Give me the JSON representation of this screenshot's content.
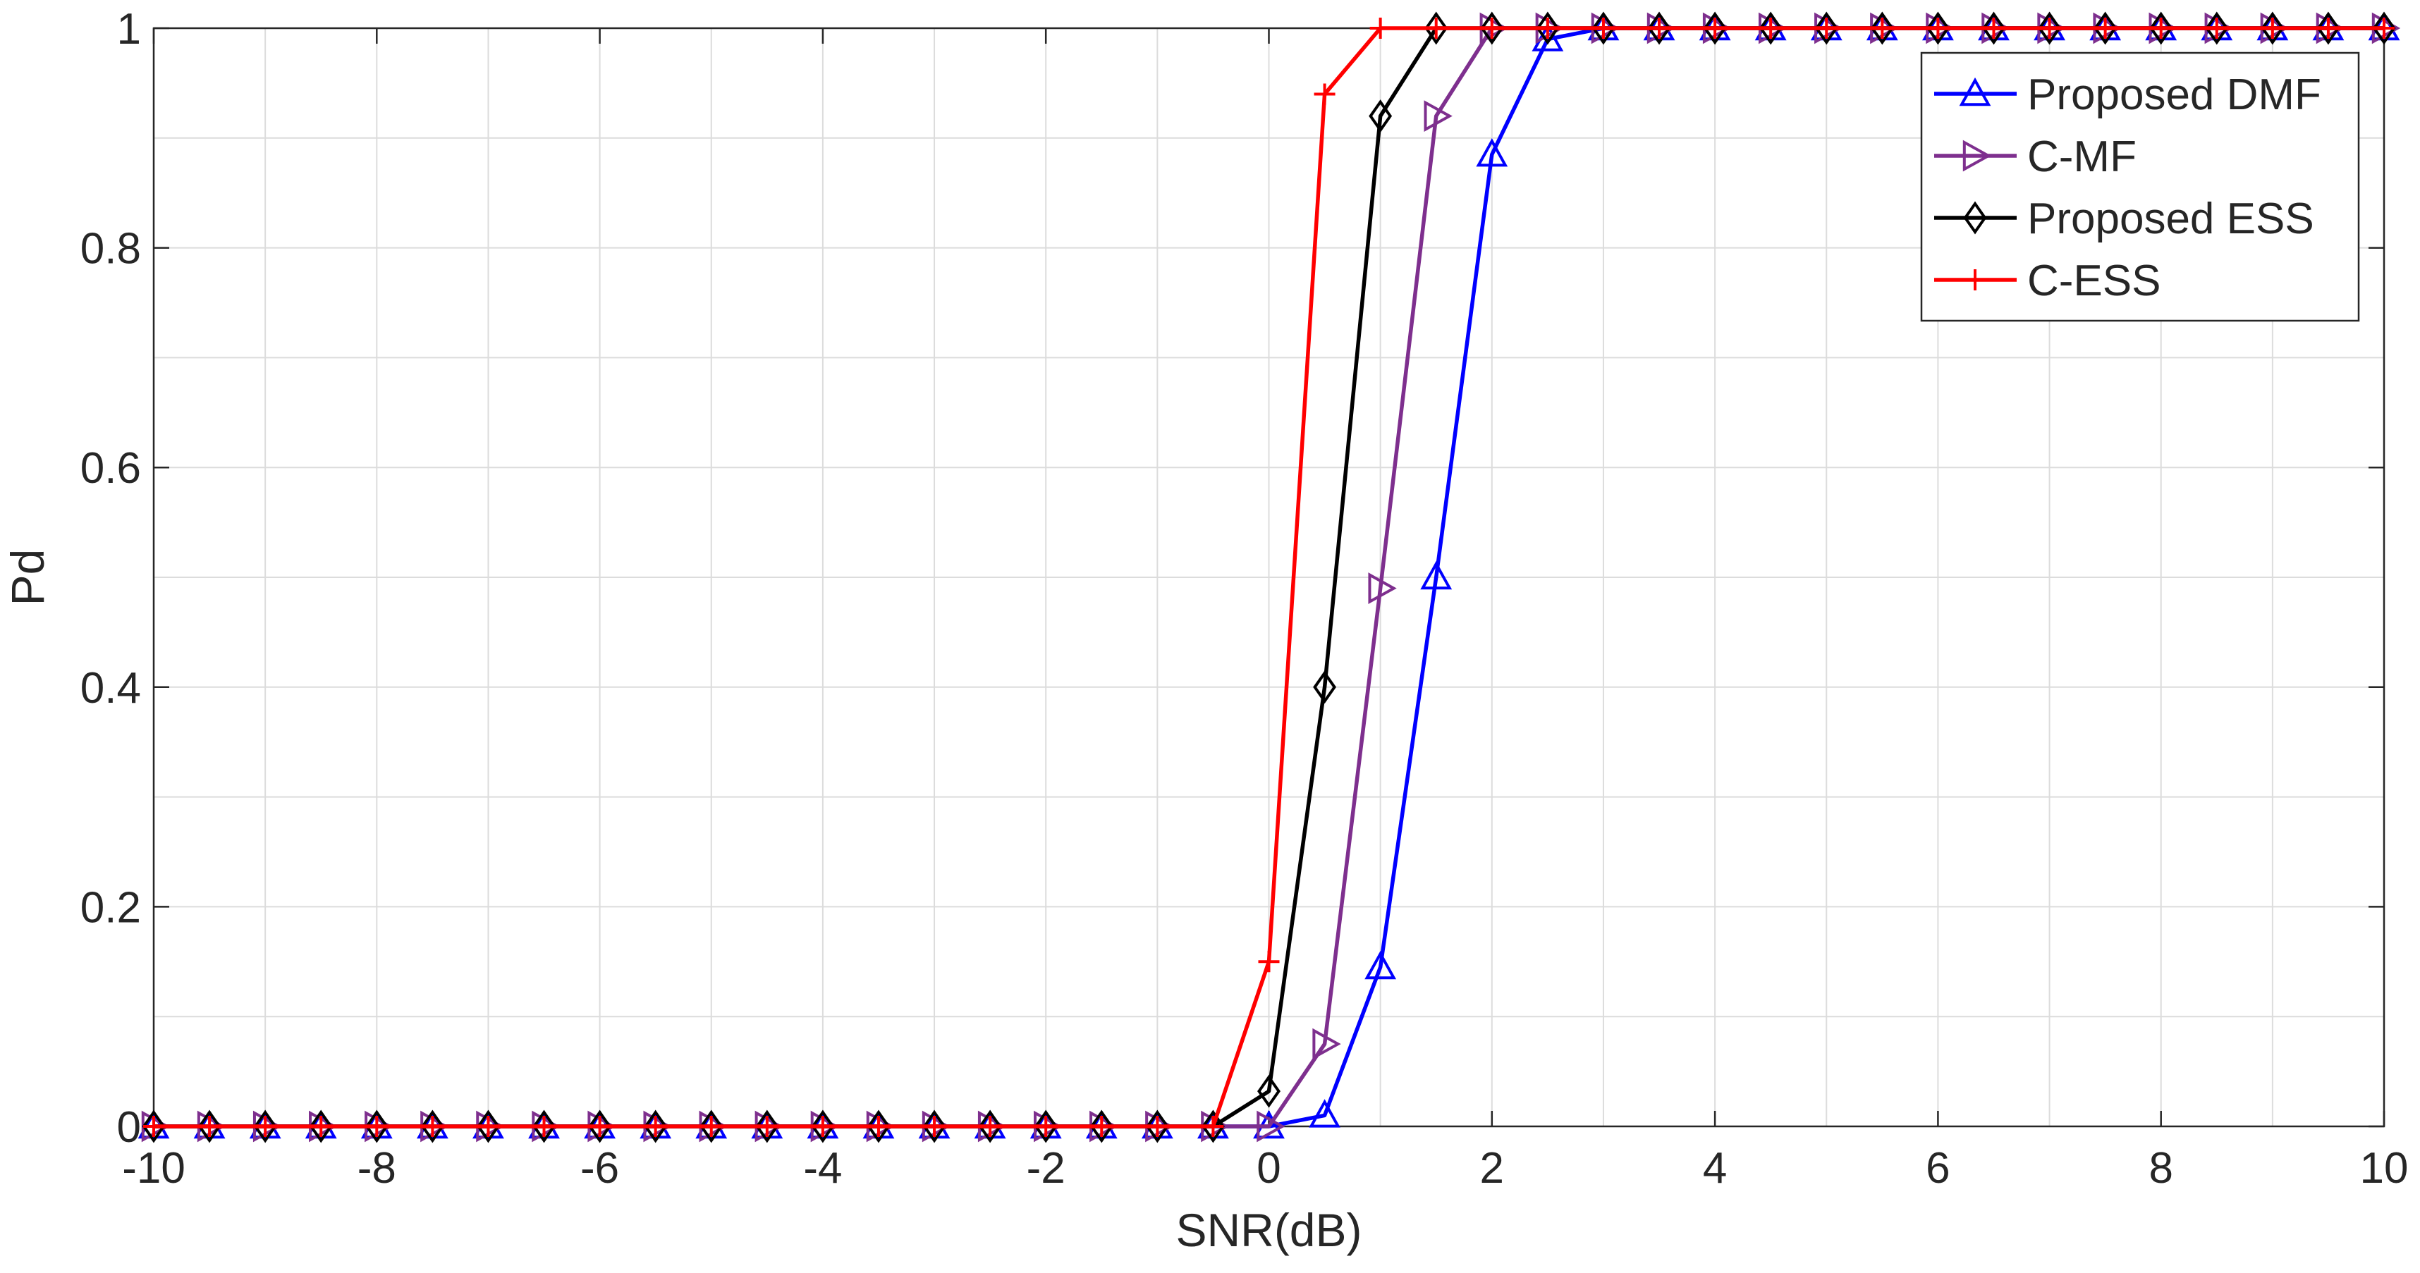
{
  "chart_data": {
    "type": "line",
    "title": "",
    "xlabel": "SNR(dB)",
    "ylabel": "Pd",
    "xlim": [
      -10,
      10
    ],
    "ylim": [
      0,
      1
    ],
    "xticks": [
      -10,
      -8,
      -6,
      -4,
      -2,
      0,
      2,
      4,
      6,
      8,
      10
    ],
    "yticks": [
      0,
      0.2,
      0.4,
      0.6,
      0.8,
      1
    ],
    "xtick_labels": [
      "-10",
      "-8",
      "-6",
      "-4",
      "-2",
      "0",
      "2",
      "4",
      "6",
      "8",
      "10"
    ],
    "ytick_labels": [
      "0",
      "0.2",
      "0.4",
      "0.6",
      "0.8",
      "1"
    ],
    "grid": true,
    "legend_position": "top-right",
    "x": [
      -10,
      -9.5,
      -9,
      -8.5,
      -8,
      -7.5,
      -7,
      -6.5,
      -6,
      -5.5,
      -5,
      -4.5,
      -4,
      -3.5,
      -3,
      -2.5,
      -2,
      -1.5,
      -1,
      -0.5,
      0,
      0.5,
      1,
      1.5,
      2,
      2.5,
      3,
      3.5,
      4,
      4.5,
      5,
      5.5,
      6,
      6.5,
      7,
      7.5,
      8,
      8.5,
      9,
      9.5,
      10
    ],
    "series": [
      {
        "name": "Proposed DMF",
        "color": "#0000ff",
        "marker": "triangle-up",
        "values": [
          0,
          0,
          0,
          0,
          0,
          0,
          0,
          0,
          0,
          0,
          0,
          0,
          0,
          0,
          0,
          0,
          0,
          0,
          0,
          0,
          0,
          0.01,
          0.145,
          0.5,
          0.885,
          0.99,
          1,
          1,
          1,
          1,
          1,
          1,
          1,
          1,
          1,
          1,
          1,
          1,
          1,
          1,
          1
        ]
      },
      {
        "name": "C-MF",
        "color": "#7e2f8e",
        "marker": "triangle-right",
        "values": [
          0,
          0,
          0,
          0,
          0,
          0,
          0,
          0,
          0,
          0,
          0,
          0,
          0,
          0,
          0,
          0,
          0,
          0,
          0,
          0,
          0,
          0.075,
          0.49,
          0.92,
          1,
          1,
          1,
          1,
          1,
          1,
          1,
          1,
          1,
          1,
          1,
          1,
          1,
          1,
          1,
          1,
          1
        ]
      },
      {
        "name": "Proposed ESS",
        "color": "#000000",
        "marker": "diamond",
        "values": [
          0,
          0,
          0,
          0,
          0,
          0,
          0,
          0,
          0,
          0,
          0,
          0,
          0,
          0,
          0,
          0,
          0,
          0,
          0,
          0,
          0.032,
          0.4,
          0.92,
          1,
          1,
          1,
          1,
          1,
          1,
          1,
          1,
          1,
          1,
          1,
          1,
          1,
          1,
          1,
          1,
          1,
          1
        ]
      },
      {
        "name": "C-ESS",
        "color": "#ff0000",
        "marker": "plus",
        "values": [
          0,
          0,
          0,
          0,
          0,
          0,
          0,
          0,
          0,
          0,
          0,
          0,
          0,
          0,
          0,
          0,
          0,
          0,
          0,
          0,
          0.15,
          0.94,
          1,
          1,
          1,
          1,
          1,
          1,
          1,
          1,
          1,
          1,
          1,
          1,
          1,
          1,
          1,
          1,
          1,
          1,
          1
        ]
      }
    ]
  }
}
